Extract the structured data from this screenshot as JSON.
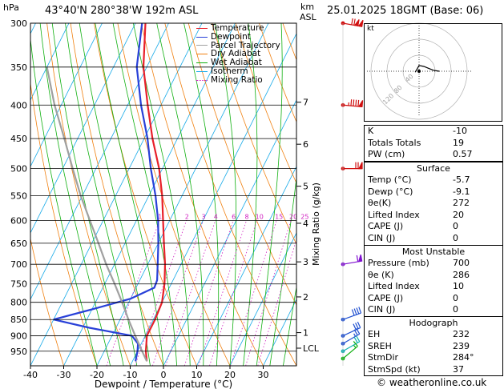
{
  "header": {
    "units": "hPa",
    "location": "43°40'N  280°38'W  192m  ASL",
    "km_label": "km",
    "asl_label": "ASL",
    "datetime": "25.01.2025  18GMT  (Base: 06)"
  },
  "legend": {
    "items": [
      {
        "label": "Temperature",
        "color": "#e8202a",
        "style": "solid"
      },
      {
        "label": "Dewpoint",
        "color": "#2840d8",
        "style": "solid"
      },
      {
        "label": "Parcel Trajectory",
        "color": "#a0a0a0",
        "style": "solid"
      },
      {
        "label": "Dry Adiabat",
        "color": "#f08010",
        "style": "solid"
      },
      {
        "label": "Wet Adiabat",
        "color": "#10b010",
        "style": "solid"
      },
      {
        "label": "Isotherm",
        "color": "#10a8e8",
        "style": "solid"
      },
      {
        "label": "Mixing Ratio",
        "color": "#d020c0",
        "style": "dotted"
      }
    ]
  },
  "chart_data": {
    "type": "line",
    "xlabel": "Dewpoint / Temperature (°C)",
    "ylabel": "hPa",
    "y2label": "Mixing Ratio (g/kg)",
    "xlim": [
      -40,
      40
    ],
    "ylim": [
      1000,
      300
    ],
    "x_ticks": [
      "-40",
      "-30",
      "-20",
      "-10",
      "0",
      "10",
      "20",
      "30"
    ],
    "pressure_ticks": [
      "300",
      "350",
      "400",
      "450",
      "500",
      "550",
      "600",
      "650",
      "700",
      "750",
      "800",
      "850",
      "900",
      "950"
    ],
    "km_ticks": [
      {
        "label": "7",
        "p": 396
      },
      {
        "label": "6",
        "p": 459
      },
      {
        "label": "5",
        "p": 532
      },
      {
        "label": "4",
        "p": 606
      },
      {
        "label": "3",
        "p": 694
      },
      {
        "label": "2",
        "p": 785
      },
      {
        "label": "1",
        "p": 890
      },
      {
        "label": "LCL",
        "p": 940
      }
    ],
    "mixing_ratio_labels": [
      "1",
      "2",
      "3",
      "4",
      "6",
      "8",
      "10",
      "15",
      "20",
      "25"
    ],
    "series": [
      {
        "name": "Temperature",
        "points": [
          [
            984,
            -5.7
          ],
          [
            950,
            -7.5
          ],
          [
            900,
            -9.5
          ],
          [
            850,
            -9.5
          ],
          [
            800,
            -10.0
          ],
          [
            750,
            -12.0
          ],
          [
            700,
            -14.8
          ],
          [
            650,
            -18.3
          ],
          [
            600,
            -22.0
          ],
          [
            550,
            -26.0
          ],
          [
            500,
            -31.0
          ],
          [
            450,
            -37.5
          ],
          [
            400,
            -44.0
          ],
          [
            350,
            -51.0
          ],
          [
            300,
            -57.0
          ]
        ]
      },
      {
        "name": "Dewpoint",
        "points": [
          [
            984,
            -9.1
          ],
          [
            950,
            -10.0
          ],
          [
            925,
            -11.0
          ],
          [
            900,
            -14.0
          ],
          [
            875,
            -28.0
          ],
          [
            850,
            -40.0
          ],
          [
            820,
            -30.0
          ],
          [
            790,
            -20.0
          ],
          [
            760,
            -14.5
          ],
          [
            740,
            -14.8
          ],
          [
            700,
            -17.0
          ],
          [
            650,
            -20.0
          ],
          [
            600,
            -23.5
          ],
          [
            550,
            -28.0
          ],
          [
            500,
            -33.5
          ],
          [
            450,
            -39.0
          ],
          [
            400,
            -46.0
          ],
          [
            350,
            -53.0
          ],
          [
            300,
            -58.0
          ]
        ]
      },
      {
        "name": "Parcel Trajectory",
        "points": [
          [
            984,
            -5.7
          ],
          [
            940,
            -9.5
          ],
          [
            900,
            -13.0
          ],
          [
            850,
            -17.5
          ],
          [
            800,
            -22.0
          ],
          [
            750,
            -27.0
          ],
          [
            700,
            -32.5
          ],
          [
            650,
            -38.0
          ],
          [
            600,
            -44.0
          ],
          [
            550,
            -50.5
          ],
          [
            500,
            -57.0
          ],
          [
            450,
            -64.0
          ],
          [
            400,
            -72.0
          ],
          [
            350,
            -80.0
          ]
        ]
      }
    ],
    "mixing_ratios": [
      1,
      2,
      3,
      4,
      6,
      8,
      10,
      15,
      20,
      25
    ],
    "dry_adiabats_theta_c": [
      -30,
      -20,
      -10,
      0,
      10,
      20,
      30,
      40,
      50,
      60,
      70,
      80,
      90,
      100,
      110,
      120,
      130,
      140,
      150,
      160
    ],
    "wet_adiabats_c": [
      -20,
      -16,
      -12,
      -8,
      -4,
      0,
      4,
      8,
      12,
      16,
      20,
      24,
      28,
      32,
      36
    ],
    "hodograph_label": "kt",
    "hodograph_rings": [
      "120",
      "80",
      "40"
    ],
    "hodograph_points": [
      [
        -8,
        -2
      ],
      [
        -5,
        3
      ],
      [
        0,
        12
      ],
      [
        10,
        10
      ],
      [
        20,
        6
      ],
      [
        30,
        2
      ],
      [
        42,
        0
      ]
    ]
  },
  "wind_barbs": [
    {
      "p": 300,
      "dir": 260,
      "speed": 120,
      "color": "#d01010"
    },
    {
      "p": 400,
      "dir": 265,
      "speed": 95,
      "color": "#d01010"
    },
    {
      "p": 500,
      "dir": 270,
      "speed": 70,
      "color": "#d01010"
    },
    {
      "p": 700,
      "dir": 280,
      "speed": 60,
      "color": "#8010d0"
    },
    {
      "p": 850,
      "dir": 290,
      "speed": 40,
      "color": "#2050d0"
    },
    {
      "p": 900,
      "dir": 295,
      "speed": 30,
      "color": "#2050d0"
    },
    {
      "p": 925,
      "dir": 300,
      "speed": 25,
      "color": "#2050d0"
    },
    {
      "p": 950,
      "dir": 300,
      "speed": 20,
      "color": "#10b0b0"
    },
    {
      "p": 975,
      "dir": 310,
      "speed": 15,
      "color": "#10b010"
    }
  ],
  "indices": {
    "k_label": "K",
    "k_value": "-10",
    "tt_label": "Totals Totals",
    "tt_value": "19",
    "pw_label": "PW (cm)",
    "pw_value": "0.57"
  },
  "surface": {
    "title": "Surface",
    "temp_label": "Temp (°C)",
    "temp_value": "-5.7",
    "dewp_label": "Dewp (°C)",
    "dewp_value": "-9.1",
    "theta_label": "θe(K)",
    "theta_value": "272",
    "li_label": "Lifted Index",
    "li_value": "20",
    "cape_label": "CAPE (J)",
    "cape_value": "0",
    "cin_label": "CIN (J)",
    "cin_value": "0"
  },
  "most_unstable": {
    "title": "Most Unstable",
    "pres_label": "Pressure (mb)",
    "pres_value": "700",
    "theta_label": "θe (K)",
    "theta_value": "286",
    "li_label": "Lifted Index",
    "li_value": "10",
    "cape_label": "CAPE (J)",
    "cape_value": "0",
    "cin_label": "CIN (J)",
    "cin_value": "0"
  },
  "hodograph": {
    "title": "Hodograph",
    "eh_label": "EH",
    "eh_value": "232",
    "srh_label": "SREH",
    "srh_value": "239",
    "dir_label": "StmDir",
    "dir_value": "284°",
    "spd_label": "StmSpd (kt)",
    "spd_value": "37"
  },
  "footer": {
    "copyright": "© weatheronline.co.uk"
  }
}
